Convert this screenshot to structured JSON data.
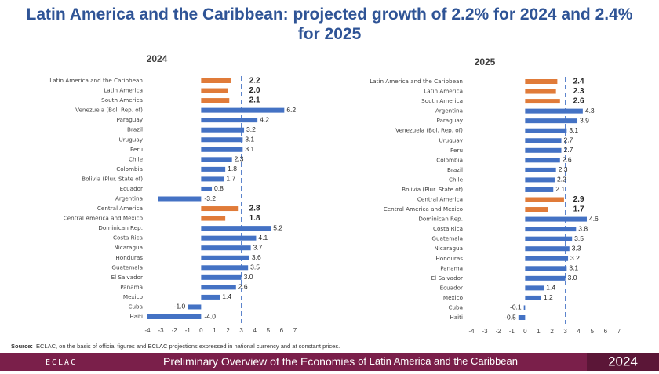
{
  "title": "Latin America and the Caribbean: projected growth of 2.2% for 2024 and 2.4% for 2025",
  "source_label": "Source:",
  "source_text": "ECLAC, on the basis of official figures and ECLAC projections expressed in national currency and at constant prices.",
  "footer": {
    "logo": "ECLAC",
    "publication_bold": "Preliminary Overview of the Economies",
    "publication_rest": "of Latin America and the Caribbean",
    "year": "2024"
  },
  "chart_data": [
    {
      "type": "bar",
      "orientation": "horizontal",
      "title": "2024",
      "categories": [
        "Latin America and the Caribbean",
        "Latin America",
        "South America",
        "Venezuela (Bol. Rep. of)",
        "Paraguay",
        "Brazil",
        "Uruguay",
        "Peru",
        "Chile",
        "Colombia",
        "Bolivia (Plur. State of)",
        "Ecuador",
        "Argentina",
        "Central America",
        "Central America and Mexico",
        "Dominican Rep.",
        "Costa Rica",
        "Nicaragua",
        "Honduras",
        "Guatemala",
        "El Salvador",
        "Panama",
        "Mexico",
        "Cuba",
        "Haiti"
      ],
      "values": [
        2.2,
        2.0,
        2.1,
        6.2,
        4.2,
        3.2,
        3.1,
        3.1,
        2.3,
        1.8,
        1.7,
        0.8,
        -3.2,
        2.8,
        1.8,
        5.2,
        4.1,
        3.7,
        3.6,
        3.5,
        3.0,
        2.6,
        1.4,
        -1.0,
        -4.0
      ],
      "value_labels": [
        "2.2",
        "2.0",
        "2.1",
        "6.2",
        "4.2",
        "3.2",
        "3.1",
        "3.1",
        "2.3",
        "1.8",
        "1.7",
        "0.8",
        "-3.2",
        "2.8",
        "1.8",
        "5.2",
        "4.1",
        "3.7",
        "3.6",
        "3.5",
        "3.0",
        "2.6",
        "1.4",
        "-1.0",
        "-4.0"
      ],
      "color": "#4472c4",
      "highlight_color": "#e07b39",
      "highlighted": [
        0,
        1,
        2,
        13,
        14
      ],
      "reference_line": 3,
      "xlim": [
        -4,
        7
      ],
      "xticks": [
        -4,
        -3,
        -2,
        -1,
        0,
        1,
        2,
        3,
        4,
        5,
        6,
        7
      ]
    },
    {
      "type": "bar",
      "orientation": "horizontal",
      "title": "2025",
      "categories": [
        "Latin America and the Caribbean",
        "Latin America",
        "South America",
        "Argentina",
        "Paraguay",
        "Venezuela (Bol. Rep. of)",
        "Uruguay",
        "Peru",
        "Colombia",
        "Brazil",
        "Chile",
        "Bolivia (Plur. State of)",
        "Central America",
        "Central America and Mexico",
        "Dominican Rep.",
        "Costa Rica",
        "Guatemala",
        "Nicaragua",
        "Honduras",
        "Panama",
        "El Salvador",
        "Ecuador",
        "Mexico",
        "Cuba",
        "Haiti"
      ],
      "values": [
        2.4,
        2.3,
        2.6,
        4.3,
        3.9,
        3.1,
        2.7,
        2.7,
        2.6,
        2.3,
        2.2,
        2.1,
        2.9,
        1.7,
        4.6,
        3.8,
        3.5,
        3.3,
        3.2,
        3.1,
        3.0,
        1.4,
        1.2,
        -0.1,
        -0.5
      ],
      "value_labels": [
        "2.4",
        "2.3",
        "2.6",
        "4.3",
        "3.9",
        "3.1",
        "2.7",
        "2.7",
        "2.6",
        "2.3",
        "2.2",
        "2.1",
        "2.9",
        "1.7",
        "4.6",
        "3.8",
        "3.5",
        "3.3",
        "3.2",
        "3.1",
        "3.0",
        "1.4",
        "1.2",
        "-0.1",
        "-0.5"
      ],
      "color": "#4472c4",
      "highlight_color": "#e07b39",
      "highlighted": [
        0,
        1,
        2,
        12,
        13
      ],
      "reference_line": 3,
      "xlim": [
        -4,
        7
      ],
      "xticks": [
        -4,
        -3,
        -2,
        -1,
        0,
        1,
        2,
        3,
        4,
        5,
        6,
        7
      ]
    }
  ]
}
